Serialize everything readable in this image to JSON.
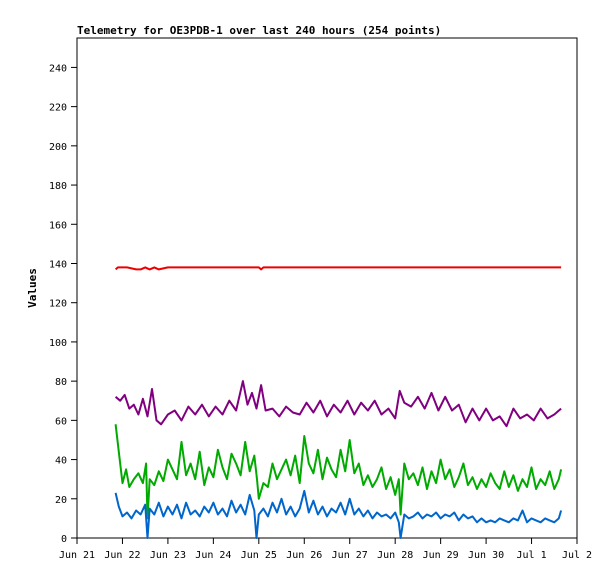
{
  "chart_data": {
    "type": "line",
    "title": "Telemetry for OE3PDB-1 over last 240 hours (254 points)",
    "xlabel": "",
    "ylabel": "Values",
    "ylim": [
      0,
      255
    ],
    "yticks": [
      0,
      20,
      40,
      60,
      80,
      100,
      120,
      140,
      160,
      180,
      200,
      220,
      240
    ],
    "xlim": [
      0,
      11
    ],
    "xticks": [
      {
        "label": "Jun 21",
        "day": 0
      },
      {
        "label": "Jun 22",
        "day": 1
      },
      {
        "label": "Jun 23",
        "day": 2
      },
      {
        "label": "Jun 24",
        "day": 3
      },
      {
        "label": "Jun 25",
        "day": 4
      },
      {
        "label": "Jun 26",
        "day": 5
      },
      {
        "label": "Jun 27",
        "day": 6
      },
      {
        "label": "Jun 28",
        "day": 7
      },
      {
        "label": "Jun 29",
        "day": 8
      },
      {
        "label": "Jun 30",
        "day": 9
      },
      {
        "label": "Jul 1",
        "day": 10
      },
      {
        "label": "Jul 2",
        "day": 11
      }
    ],
    "grid": false,
    "series": [
      {
        "color": "#ee0000",
        "x": [
          0.85,
          0.9,
          1.1,
          1.3,
          1.4,
          1.5,
          1.6,
          1.7,
          1.8,
          2.0,
          3.0,
          4.0,
          4.05,
          4.1,
          5.0,
          6.0,
          7.0,
          8.0,
          9.0,
          10.0,
          10.65
        ],
        "values": [
          137,
          138,
          138,
          137,
          137,
          138,
          137,
          138,
          137,
          138,
          138,
          138,
          137,
          138,
          138,
          138,
          138,
          138,
          138,
          138,
          138
        ]
      },
      {
        "color": "#800080",
        "x": [
          0.85,
          0.95,
          1.05,
          1.15,
          1.25,
          1.35,
          1.45,
          1.55,
          1.65,
          1.75,
          1.85,
          2.0,
          2.15,
          2.3,
          2.45,
          2.6,
          2.75,
          2.9,
          3.05,
          3.2,
          3.35,
          3.5,
          3.65,
          3.75,
          3.85,
          3.95,
          4.05,
          4.15,
          4.3,
          4.45,
          4.6,
          4.75,
          4.9,
          5.05,
          5.2,
          5.35,
          5.5,
          5.65,
          5.8,
          5.95,
          6.1,
          6.25,
          6.4,
          6.55,
          6.7,
          6.85,
          7.0,
          7.1,
          7.2,
          7.35,
          7.5,
          7.65,
          7.8,
          7.95,
          8.1,
          8.25,
          8.4,
          8.55,
          8.7,
          8.85,
          9.0,
          9.15,
          9.3,
          9.45,
          9.6,
          9.75,
          9.9,
          10.05,
          10.2,
          10.35,
          10.5,
          10.65
        ],
        "values": [
          72,
          70,
          73,
          66,
          68,
          63,
          71,
          62,
          76,
          60,
          58,
          63,
          65,
          60,
          67,
          63,
          68,
          62,
          67,
          63,
          70,
          65,
          80,
          68,
          74,
          66,
          78,
          65,
          66,
          62,
          67,
          64,
          63,
          69,
          64,
          70,
          62,
          68,
          64,
          70,
          63,
          69,
          65,
          70,
          63,
          66,
          61,
          75,
          69,
          67,
          72,
          66,
          74,
          65,
          72,
          65,
          68,
          59,
          66,
          60,
          66,
          60,
          62,
          57,
          66,
          61,
          63,
          60,
          66,
          61,
          63,
          66
        ]
      },
      {
        "color": "#00aa00",
        "x": [
          0.85,
          0.92,
          1.0,
          1.08,
          1.15,
          1.25,
          1.35,
          1.45,
          1.52,
          1.55,
          1.6,
          1.7,
          1.8,
          1.9,
          2.0,
          2.1,
          2.2,
          2.3,
          2.4,
          2.5,
          2.6,
          2.7,
          2.8,
          2.9,
          3.0,
          3.1,
          3.2,
          3.3,
          3.4,
          3.5,
          3.6,
          3.7,
          3.8,
          3.9,
          3.96,
          4.0,
          4.1,
          4.2,
          4.3,
          4.4,
          4.5,
          4.6,
          4.7,
          4.8,
          4.9,
          5.0,
          5.1,
          5.2,
          5.3,
          5.4,
          5.5,
          5.6,
          5.7,
          5.8,
          5.9,
          6.0,
          6.1,
          6.2,
          6.3,
          6.4,
          6.5,
          6.6,
          6.7,
          6.8,
          6.9,
          7.0,
          7.08,
          7.12,
          7.2,
          7.3,
          7.4,
          7.5,
          7.6,
          7.7,
          7.8,
          7.9,
          8.0,
          8.1,
          8.2,
          8.3,
          8.4,
          8.5,
          8.6,
          8.7,
          8.8,
          8.9,
          9.0,
          9.1,
          9.2,
          9.3,
          9.4,
          9.5,
          9.6,
          9.7,
          9.8,
          9.9,
          10.0,
          10.1,
          10.2,
          10.3,
          10.4,
          10.5,
          10.6,
          10.65
        ],
        "values": [
          58,
          44,
          28,
          35,
          26,
          30,
          33,
          28,
          38,
          10,
          30,
          27,
          34,
          29,
          40,
          35,
          30,
          49,
          32,
          38,
          30,
          44,
          27,
          36,
          31,
          45,
          36,
          30,
          43,
          38,
          32,
          49,
          34,
          42,
          30,
          20,
          28,
          26,
          38,
          30,
          35,
          40,
          32,
          42,
          28,
          52,
          38,
          33,
          45,
          30,
          41,
          35,
          31,
          45,
          34,
          50,
          33,
          38,
          27,
          32,
          26,
          30,
          36,
          25,
          31,
          22,
          30,
          12,
          38,
          30,
          33,
          27,
          36,
          25,
          34,
          28,
          40,
          30,
          35,
          26,
          31,
          38,
          27,
          31,
          25,
          30,
          26,
          33,
          28,
          25,
          34,
          26,
          32,
          24,
          30,
          26,
          36,
          25,
          30,
          27,
          34,
          25,
          30,
          35
        ]
      },
      {
        "color": "#0066cc",
        "x": [
          0.85,
          0.92,
          1.0,
          1.1,
          1.2,
          1.3,
          1.4,
          1.5,
          1.55,
          1.6,
          1.7,
          1.8,
          1.9,
          2.0,
          2.1,
          2.2,
          2.3,
          2.4,
          2.5,
          2.6,
          2.7,
          2.8,
          2.9,
          3.0,
          3.1,
          3.2,
          3.3,
          3.4,
          3.5,
          3.6,
          3.7,
          3.8,
          3.9,
          3.95,
          4.0,
          4.1,
          4.2,
          4.3,
          4.4,
          4.5,
          4.6,
          4.7,
          4.8,
          4.9,
          5.0,
          5.1,
          5.2,
          5.3,
          5.4,
          5.5,
          5.6,
          5.7,
          5.8,
          5.9,
          6.0,
          6.1,
          6.2,
          6.3,
          6.4,
          6.5,
          6.6,
          6.7,
          6.8,
          6.9,
          7.0,
          7.08,
          7.12,
          7.2,
          7.3,
          7.4,
          7.5,
          7.6,
          7.7,
          7.8,
          7.9,
          8.0,
          8.1,
          8.2,
          8.3,
          8.4,
          8.5,
          8.6,
          8.7,
          8.8,
          8.9,
          9.0,
          9.1,
          9.2,
          9.3,
          9.4,
          9.5,
          9.6,
          9.7,
          9.8,
          9.9,
          10.0,
          10.1,
          10.2,
          10.3,
          10.4,
          10.5,
          10.6,
          10.65
        ],
        "values": [
          23,
          16,
          11,
          13,
          10,
          14,
          12,
          17,
          0,
          15,
          12,
          18,
          11,
          16,
          12,
          17,
          10,
          18,
          12,
          14,
          11,
          16,
          13,
          18,
          12,
          15,
          11,
          19,
          13,
          17,
          12,
          22,
          14,
          0,
          12,
          15,
          11,
          18,
          13,
          20,
          12,
          16,
          11,
          15,
          24,
          13,
          19,
          12,
          16,
          11,
          15,
          13,
          18,
          12,
          20,
          12,
          15,
          11,
          14,
          10,
          13,
          11,
          12,
          10,
          13,
          8,
          0,
          12,
          10,
          11,
          13,
          10,
          12,
          11,
          13,
          10,
          12,
          11,
          13,
          9,
          12,
          10,
          11,
          8,
          10,
          8,
          9,
          8,
          10,
          9,
          8,
          10,
          9,
          14,
          8,
          10,
          9,
          8,
          10,
          9,
          8,
          10,
          14
        ]
      }
    ]
  }
}
